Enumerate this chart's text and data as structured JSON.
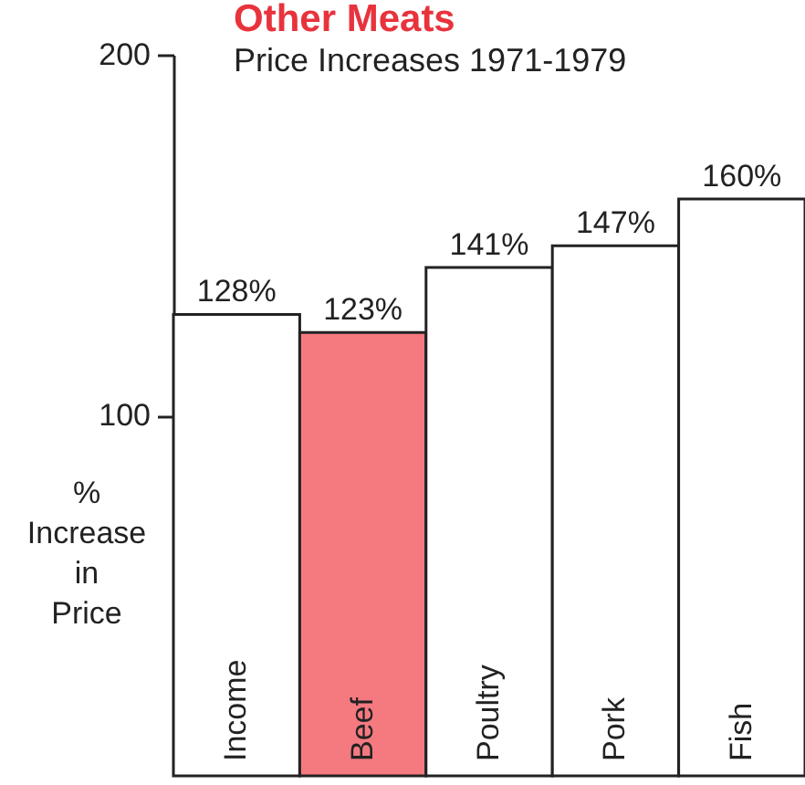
{
  "chart_data": {
    "type": "bar",
    "title": "Other Meats",
    "subtitle": "Price Increases 1971-1979",
    "ylabel": "% Increase in Price",
    "categories": [
      "Income",
      "Beef",
      "Poultry",
      "Pork",
      "Fish"
    ],
    "values": [
      128,
      123,
      141,
      147,
      160
    ],
    "colors": [
      "#ffffff",
      "#f47a80",
      "#ffffff",
      "#ffffff",
      "#ffffff"
    ],
    "value_labels": [
      "128%",
      "123%",
      "141%",
      "147%",
      "160%"
    ],
    "ylim": [
      0,
      200
    ],
    "yticks": [
      100,
      200
    ],
    "grid": false
  }
}
